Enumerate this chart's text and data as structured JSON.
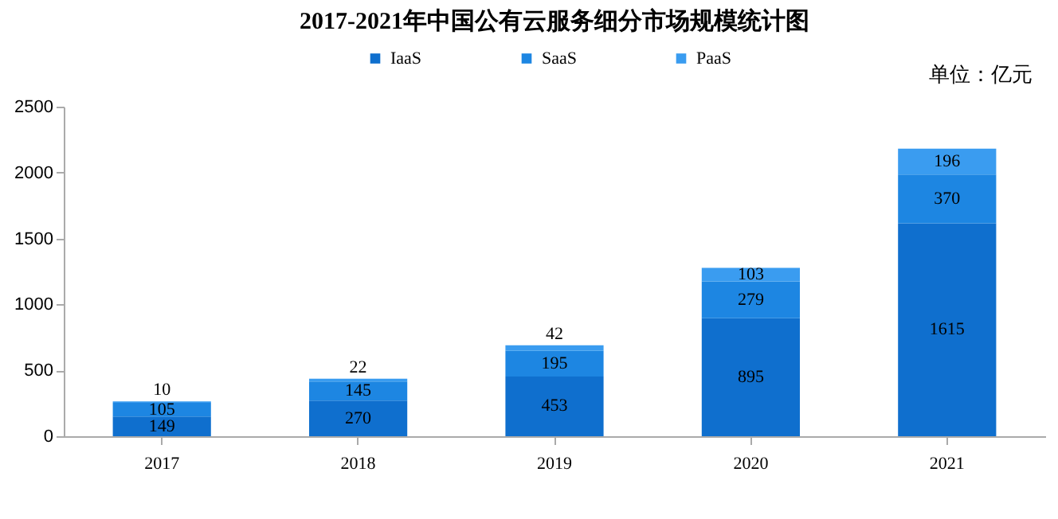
{
  "chart_data": {
    "type": "bar",
    "title": "2017-2021年中国公有云服务细分市场规模统计图",
    "annotations": [
      "单位：亿元"
    ],
    "categories": [
      "2017",
      "2018",
      "2019",
      "2020",
      "2021"
    ],
    "series": [
      {
        "name": "IaaS",
        "color": "#0f6fce",
        "values": [
          149,
          270,
          453,
          895,
          1615
        ]
      },
      {
        "name": "SaaS",
        "color": "#1d86e2",
        "values": [
          105,
          145,
          195,
          279,
          370
        ]
      },
      {
        "name": "PaaS",
        "color": "#3a9cf0",
        "values": [
          10,
          22,
          42,
          103,
          196
        ]
      }
    ],
    "stacked": true,
    "data_labels": true,
    "legend": "top",
    "grid": false,
    "ylim": [
      0,
      2500
    ],
    "yticks": [
      0,
      500,
      1000,
      1500,
      2000,
      2500
    ]
  }
}
